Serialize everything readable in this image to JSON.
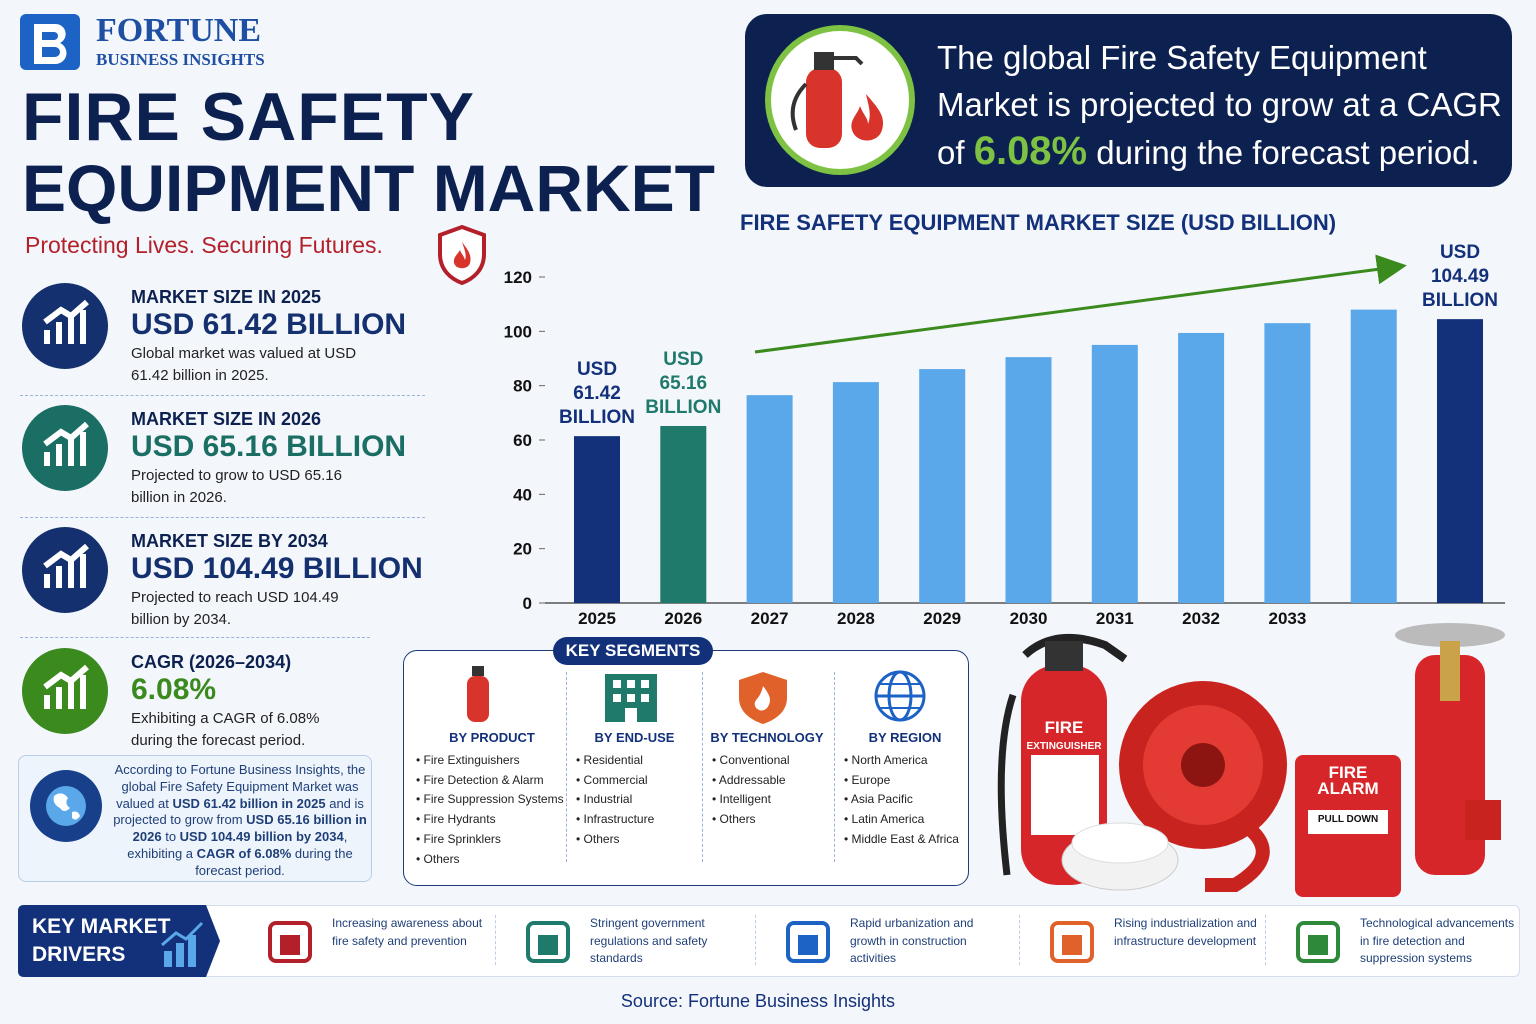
{
  "brand": {
    "name": "FORTUNE",
    "sub": "BUSINESS INSIGHTS"
  },
  "header": {
    "title_line1": "FIRE SAFETY",
    "title_line2": "EQUIPMENT MARKET",
    "tagline": "Protecting Lives. Securing Futures."
  },
  "banner": {
    "text_before": "The global Fire Safety Equipment Market is projected to grow at a CAGR of",
    "highlight": "6.08%",
    "text_after": "during the forecast period."
  },
  "stats": [
    {
      "label": "MARKET SIZE IN 2025",
      "value": "USD 61.42 BILLION",
      "desc": "Global market was valued at USD 61.42 billion in 2025.",
      "color": "#14306e"
    },
    {
      "label": "MARKET SIZE IN 2026",
      "value": "USD 65.16 BILLION",
      "desc": "Projected to grow to USD 65.16 billion in 2026.",
      "color": "#1a6e63"
    },
    {
      "label": "MARKET SIZE BY 2034",
      "value": "USD 104.49 BILLION",
      "desc": "Projected to reach USD 104.49 billion by 2034.",
      "color": "#14306e"
    },
    {
      "label": "CAGR (2026–2034)",
      "value": "6.08%",
      "desc": "Exhibiting a CAGR of 6.08% during the forecast period.",
      "color": "#3a8a1e"
    }
  ],
  "about": {
    "parts": [
      {
        "text": "According to Fortune Business Insights, the global Fire Safety Equipment Market was valued at ",
        "bold": false
      },
      {
        "text": "USD 61.42 billion in 2025",
        "bold": true
      },
      {
        "text": " and is projected to grow from ",
        "bold": false
      },
      {
        "text": "USD 65.16 billion in 2026",
        "bold": true
      },
      {
        "text": " to ",
        "bold": false
      },
      {
        "text": "USD 104.49 billion by 2034",
        "bold": true
      },
      {
        "text": ", exhibiting a ",
        "bold": false
      },
      {
        "text": "CAGR of 6.08%",
        "bold": true
      },
      {
        "text": " during the forecast period.",
        "bold": false
      }
    ]
  },
  "segments": {
    "title": "KEY SEGMENTS",
    "groups": [
      {
        "title": "BY PRODUCT",
        "items": [
          "Fire Extinguishers",
          "Fire Detection & Alarm",
          "Fire Suppression Systems",
          "Fire Hydrants",
          "Fire Sprinklers",
          "Others"
        ]
      },
      {
        "title": "BY END-USE",
        "items": [
          "Residential",
          "Commercial",
          "Industrial",
          "Infrastructure",
          "Others"
        ]
      },
      {
        "title": "BY TECHNOLOGY",
        "items": [
          "Conventional",
          "Addressable",
          "Intelligent",
          "Others"
        ]
      },
      {
        "title": "BY REGION",
        "items": [
          "North America",
          "Europe",
          "Asia Pacific",
          "Latin America",
          "Middle East & Africa"
        ]
      }
    ]
  },
  "drivers": {
    "title": "KEY MARKET\nDRIVERS",
    "items": [
      "Increasing awareness about fire safety and prevention",
      "Stringent government regulations and safety standards",
      "Rapid urbanization and growth in construction activities",
      "Rising industrialization and infrastructure development",
      "Technological advancements in fire detection and suppression systems"
    ]
  },
  "illustration_labels": {
    "extinguisher": "FIRE",
    "extinguisher_sub": "EXTINGUISHER",
    "alarm": "FIRE\nALARM",
    "pull": "PULL DOWN"
  },
  "source": "Source: Fortune Business Insights",
  "chart_data": {
    "type": "bar",
    "title": "FIRE SAFETY EQUIPMENT MARKET SIZE (USD BILLION)",
    "categories": [
      "2025",
      "2026",
      "2027",
      "2028",
      "2029",
      "2030",
      "2031",
      "2032",
      "2033",
      null,
      null
    ],
    "values": [
      61.42,
      65.16,
      76.5,
      81.3,
      86.1,
      90.5,
      95,
      99.4,
      103,
      108,
      104.49
    ],
    "value_labels": [
      "USD\n61.42\nBILLION",
      "USD\n65.16\nBILLION",
      null,
      null,
      null,
      null,
      null,
      null,
      null,
      null,
      "USD\n104.49\nBILLION"
    ],
    "colors": [
      "#13307a",
      "#1f7a6c",
      "#5aa7ea",
      "#5aa7ea",
      "#5aa7ea",
      "#5aa7ea",
      "#5aa7ea",
      "#5aa7ea",
      "#5aa7ea",
      "#5aa7ea",
      "#13307a"
    ],
    "ylim": [
      0,
      120
    ],
    "yticks": [
      0,
      20,
      40,
      60,
      80,
      100,
      120
    ],
    "grid": false
  }
}
